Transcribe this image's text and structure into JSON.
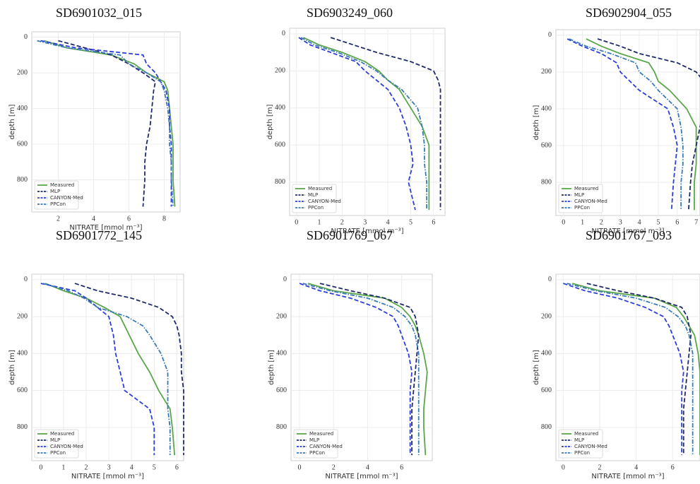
{
  "chart_data": [
    {
      "type": "line",
      "title": "SD6901032_015",
      "xlabel": "NITRATE [mmol m⁻³]",
      "ylabel": "depth [m]",
      "y": [
        20,
        60,
        100,
        150,
        200,
        250,
        300,
        400,
        500,
        600,
        700,
        800,
        950
      ],
      "xlim": [
        0.5,
        8.9
      ],
      "xticks": [
        2,
        4,
        6,
        8
      ],
      "ylim": [
        -30,
        980
      ],
      "yticks": [
        0,
        200,
        400,
        600,
        800
      ],
      "y_inverted": true,
      "grid": true,
      "legend": "lower left",
      "series": [
        {
          "name": "Measured",
          "color": "#5aa64a",
          "linestyle": "solid",
          "values": [
            1.2,
            2.5,
            5.0,
            6.3,
            7.0,
            8.0,
            8.2,
            8.3,
            8.4,
            8.5,
            8.5,
            8.5,
            8.6
          ]
        },
        {
          "name": "MLP",
          "color": "#1f2a6b",
          "linestyle": "dashed",
          "values": [
            2.0,
            3.5,
            5.0,
            6.0,
            6.8,
            7.5,
            7.4,
            7.3,
            7.2,
            7.0,
            6.9,
            6.9,
            6.8
          ]
        },
        {
          "name": "CANYON-Med",
          "color": "#2b3fd6",
          "linestyle": "dashed",
          "values": [
            1.0,
            3.0,
            6.8,
            7.0,
            7.5,
            7.8,
            8.1,
            8.3,
            8.3,
            8.4,
            8.4,
            8.4,
            8.4
          ]
        },
        {
          "name": "PPCon",
          "color": "#3a7ab8",
          "linestyle": "dashdot",
          "values": [
            0.8,
            2.5,
            5.5,
            6.0,
            7.0,
            7.8,
            8.0,
            8.2,
            8.3,
            8.3,
            8.4,
            8.4,
            8.5
          ]
        }
      ]
    },
    {
      "type": "line",
      "title": "SD6903249_060",
      "xlabel": "NITRATE [mmol m⁻³]",
      "ylabel": "depth [m]",
      "y": [
        20,
        60,
        100,
        150,
        200,
        250,
        300,
        400,
        500,
        600,
        700,
        800,
        950
      ],
      "xlim": [
        -0.3,
        6.5
      ],
      "xticks": [
        0,
        1,
        2,
        3,
        4,
        5,
        6
      ],
      "ylim": [
        -30,
        980
      ],
      "yticks": [
        0,
        200,
        400,
        600,
        800
      ],
      "y_inverted": true,
      "grid": true,
      "legend": "lower left",
      "series": [
        {
          "name": "Measured",
          "color": "#5aa64a",
          "linestyle": "solid",
          "values": [
            0.3,
            1.0,
            2.0,
            3.0,
            3.6,
            4.0,
            4.5,
            5.0,
            5.5,
            5.8,
            5.8,
            5.8,
            5.8
          ]
        },
        {
          "name": "MLP",
          "color": "#1f2a6b",
          "linestyle": "dashed",
          "values": [
            1.5,
            2.5,
            3.5,
            5.0,
            6.0,
            6.2,
            6.3,
            6.3,
            6.3,
            6.3,
            6.3,
            6.3,
            6.3
          ]
        },
        {
          "name": "CANYON-Med",
          "color": "#2b3fd6",
          "linestyle": "dashed",
          "values": [
            0.1,
            0.6,
            1.5,
            2.6,
            3.0,
            3.5,
            4.0,
            4.5,
            4.8,
            5.0,
            5.1,
            4.9,
            5.2
          ]
        },
        {
          "name": "PPCon",
          "color": "#3a7ab8",
          "linestyle": "dashdot",
          "values": [
            0.2,
            0.8,
            1.8,
            2.8,
            3.5,
            4.0,
            4.6,
            5.3,
            5.5,
            5.6,
            5.6,
            5.7,
            5.7
          ]
        }
      ]
    },
    {
      "type": "line",
      "title": "SD6902904_055",
      "xlabel": "NITRATE [mmol m⁻³]",
      "ylabel": "depth [m]",
      "y": [
        20,
        60,
        100,
        150,
        200,
        250,
        300,
        400,
        500,
        600,
        700,
        800,
        950
      ],
      "xlim": [
        -0.4,
        7.2
      ],
      "xticks": [
        0,
        1,
        2,
        3,
        4,
        5,
        6,
        7
      ],
      "ylim": [
        -30,
        980
      ],
      "yticks": [
        0,
        200,
        400,
        600,
        800
      ],
      "y_inverted": true,
      "grid": true,
      "legend": "lower left",
      "series": [
        {
          "name": "Measured",
          "color": "#5aa64a",
          "linestyle": "solid",
          "values": [
            1.2,
            2.0,
            3.0,
            4.5,
            4.8,
            5.0,
            5.6,
            6.5,
            7.0,
            7.0,
            7.0,
            6.9,
            6.9
          ]
        },
        {
          "name": "MLP",
          "color": "#1f2a6b",
          "linestyle": "dashed",
          "values": [
            1.8,
            3.0,
            4.0,
            6.0,
            7.0,
            7.4,
            7.5,
            7.4,
            7.2,
            7.0,
            6.8,
            6.7,
            6.6
          ]
        },
        {
          "name": "CANYON-Med",
          "color": "#2b3fd6",
          "linestyle": "dashed",
          "values": [
            0.2,
            1.0,
            2.0,
            2.8,
            3.0,
            3.5,
            4.0,
            5.5,
            5.8,
            6.0,
            5.9,
            5.8,
            5.7
          ]
        },
        {
          "name": "PPCon",
          "color": "#3a7ab8",
          "linestyle": "dashdot",
          "values": [
            0.3,
            1.2,
            2.5,
            3.8,
            4.0,
            4.6,
            5.0,
            6.0,
            6.2,
            6.3,
            6.3,
            6.2,
            6.2
          ]
        }
      ]
    },
    {
      "type": "line",
      "title": "SD6901772_145",
      "xlabel": "NITRATE [mmol m⁻³]",
      "ylabel": "depth [m]",
      "y": [
        20,
        60,
        100,
        150,
        200,
        250,
        300,
        400,
        500,
        600,
        700,
        800,
        950
      ],
      "xlim": [
        -0.4,
        6.3
      ],
      "xticks": [
        0,
        1,
        2,
        3,
        4,
        5,
        6
      ],
      "ylim": [
        -30,
        980
      ],
      "yticks": [
        0,
        200,
        400,
        600,
        800
      ],
      "y_inverted": true,
      "grid": true,
      "legend": "lower left",
      "series": [
        {
          "name": "Measured",
          "color": "#5aa64a",
          "linestyle": "solid",
          "values": [
            0.2,
            1.0,
            2.0,
            2.8,
            3.5,
            3.7,
            3.9,
            4.3,
            4.8,
            5.2,
            5.7,
            5.8,
            5.9
          ]
        },
        {
          "name": "MLP",
          "color": "#1f2a6b",
          "linestyle": "dashed",
          "values": [
            1.5,
            2.5,
            4.0,
            5.2,
            5.8,
            6.0,
            6.1,
            6.2,
            6.2,
            6.3,
            6.3,
            6.3,
            6.3
          ]
        },
        {
          "name": "CANYON-Med",
          "color": "#2b3fd6",
          "linestyle": "dashed",
          "values": [
            0.0,
            1.5,
            2.0,
            2.5,
            3.0,
            3.1,
            3.2,
            3.3,
            3.5,
            3.7,
            4.8,
            5.0,
            5.0
          ]
        },
        {
          "name": "PPCon",
          "color": "#3a7ab8",
          "linestyle": "dashdot",
          "values": [
            0.1,
            1.2,
            1.9,
            2.5,
            3.8,
            4.5,
            4.8,
            5.3,
            5.6,
            5.6,
            5.6,
            5.7,
            5.7
          ]
        }
      ]
    },
    {
      "type": "line",
      "title": "SD6901769_067",
      "xlabel": "NITRATE [mmol m⁻³]",
      "ylabel": "depth [m]",
      "y": [
        20,
        60,
        100,
        150,
        200,
        250,
        300,
        400,
        500,
        600,
        700,
        800,
        950
      ],
      "xlim": [
        -0.5,
        7.8
      ],
      "xticks": [
        0,
        2,
        4,
        6
      ],
      "ylim": [
        -30,
        980
      ],
      "yticks": [
        0,
        200,
        400,
        600,
        800
      ],
      "y_inverted": true,
      "grid": true,
      "legend": "lower left",
      "series": [
        {
          "name": "Measured",
          "color": "#5aa64a",
          "linestyle": "solid",
          "values": [
            0.5,
            2.0,
            5.0,
            6.0,
            6.5,
            6.8,
            7.0,
            7.3,
            7.5,
            7.4,
            7.3,
            7.3,
            7.4
          ]
        },
        {
          "name": "MLP",
          "color": "#1f2a6b",
          "linestyle": "dashed",
          "values": [
            1.2,
            3.0,
            5.0,
            6.5,
            6.8,
            6.9,
            7.0,
            6.9,
            6.8,
            6.7,
            6.6,
            6.6,
            6.6
          ]
        },
        {
          "name": "CANYON-Med",
          "color": "#2b3fd6",
          "linestyle": "dashed",
          "values": [
            0.0,
            1.2,
            3.0,
            4.5,
            5.5,
            5.8,
            6.0,
            6.4,
            6.6,
            6.5,
            6.5,
            6.5,
            6.5
          ]
        },
        {
          "name": "PPCon",
          "color": "#3a7ab8",
          "linestyle": "dashdot",
          "values": [
            0.2,
            1.8,
            4.0,
            5.5,
            6.2,
            6.6,
            6.8,
            7.0,
            7.0,
            7.0,
            7.0,
            7.0,
            7.0
          ]
        }
      ]
    },
    {
      "type": "line",
      "title": "SD6901767_093",
      "xlabel": "NITRATE [mmol m⁻³]",
      "ylabel": "depth [m]",
      "y": [
        20,
        60,
        100,
        150,
        200,
        250,
        300,
        400,
        500,
        600,
        700,
        800,
        950
      ],
      "xlim": [
        -0.4,
        7.5
      ],
      "xticks": [
        0,
        2,
        4,
        6
      ],
      "ylim": [
        -30,
        980
      ],
      "yticks": [
        0,
        200,
        400,
        600,
        800
      ],
      "y_inverted": true,
      "grid": true,
      "legend": "lower left",
      "series": [
        {
          "name": "Measured",
          "color": "#5aa64a",
          "linestyle": "solid",
          "values": [
            0.5,
            2.0,
            5.0,
            6.2,
            6.6,
            6.9,
            7.2,
            7.4,
            7.5,
            7.5,
            7.5,
            7.5,
            7.5
          ]
        },
        {
          "name": "MLP",
          "color": "#1f2a6b",
          "linestyle": "dashed",
          "values": [
            1.3,
            3.0,
            5.0,
            6.5,
            6.8,
            6.9,
            7.0,
            6.9,
            6.8,
            6.7,
            6.6,
            6.6,
            6.6
          ]
        },
        {
          "name": "CANYON-Med",
          "color": "#2b3fd6",
          "linestyle": "dashed",
          "values": [
            0.0,
            1.2,
            3.0,
            4.5,
            5.5,
            5.8,
            6.0,
            6.4,
            6.6,
            6.5,
            6.5,
            6.5,
            6.5
          ]
        },
        {
          "name": "PPCon",
          "color": "#3a7ab8",
          "linestyle": "dashdot",
          "values": [
            0.2,
            1.8,
            4.0,
            5.6,
            6.3,
            6.7,
            6.9,
            7.1,
            7.1,
            7.1,
            7.1,
            7.1,
            7.1
          ]
        }
      ]
    }
  ]
}
